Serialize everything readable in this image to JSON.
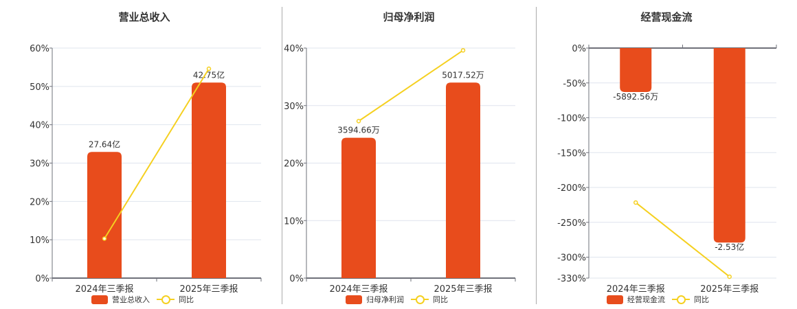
{
  "colors": {
    "bar": "#e84c1c",
    "line": "#f5d020",
    "grid": "#dfe4ee",
    "axis": "#6e7079",
    "separator": "#aaaaaa"
  },
  "chart_data": [
    {
      "type": "bar+line",
      "title": "营业总收入",
      "categories": [
        "2024年三季报",
        "2025年三季报"
      ],
      "yticks": [
        "60%",
        "50%",
        "40%",
        "30%",
        "20%",
        "10%",
        "0%"
      ],
      "ylim": [
        0,
        60
      ],
      "series": [
        {
          "name": "营业总收入",
          "type": "bar",
          "values_pct_axis": [
            32.9,
            51.0
          ],
          "labels": [
            "27.64亿",
            "42.75亿"
          ]
        },
        {
          "name": "同比",
          "type": "line",
          "values": [
            10.3,
            54.6
          ]
        }
      ],
      "legend": [
        "营业总收入",
        "同比"
      ],
      "legend_position": "bottom",
      "grid": true
    },
    {
      "type": "bar+line",
      "title": "归母净利润",
      "categories": [
        "2024年三季报",
        "2025年三季报"
      ],
      "yticks": [
        "40%",
        "30%",
        "20%",
        "10%",
        "0%"
      ],
      "ylim": [
        0,
        40
      ],
      "series": [
        {
          "name": "归母净利润",
          "type": "bar",
          "values_pct_axis": [
            24.4,
            34.0
          ],
          "labels": [
            "3594.66万",
            "5017.52万"
          ]
        },
        {
          "name": "同比",
          "type": "line",
          "values": [
            27.3,
            39.6
          ]
        }
      ],
      "legend": [
        "归母净利润",
        "同比"
      ],
      "legend_position": "bottom",
      "grid": true
    },
    {
      "type": "bar+line",
      "title": "经营现金流",
      "categories": [
        "2024年三季报",
        "2025年三季报"
      ],
      "yticks": [
        "0%",
        "-50%",
        "-100%",
        "-150%",
        "-200%",
        "-250%",
        "-300%",
        "-330%"
      ],
      "ylim": [
        -330,
        0
      ],
      "series": [
        {
          "name": "经营现金流",
          "type": "bar",
          "values_pct_axis": [
            -63.0,
            -279.0
          ],
          "labels": [
            "-5892.56万",
            "-2.53亿"
          ]
        },
        {
          "name": "同比",
          "type": "line",
          "values": [
            -221.6,
            -328.0
          ]
        }
      ],
      "legend": [
        "经营现金流",
        "同比"
      ],
      "legend_position": "bottom",
      "grid": true
    }
  ]
}
